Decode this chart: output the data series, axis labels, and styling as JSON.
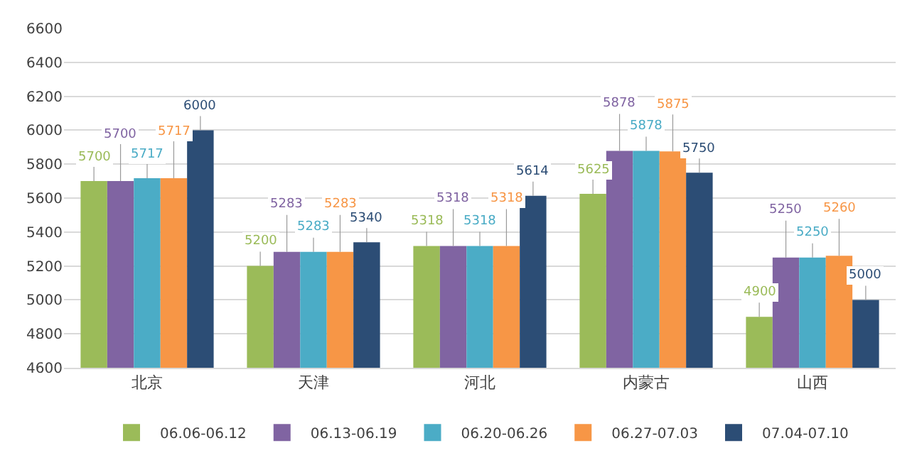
{
  "chart_data": {
    "type": "bar",
    "categories": [
      "北京",
      "天津",
      "河北",
      "内蒙古",
      "山西"
    ],
    "series": [
      {
        "name": "06.06-06.12",
        "color": "#9bbb59",
        "values": [
          5700,
          5200,
          5318,
          5625,
          4900
        ]
      },
      {
        "name": "06.13-06.19",
        "color": "#8064a2",
        "values": [
          5700,
          5283,
          5318,
          5878,
          5250
        ]
      },
      {
        "name": "06.20-06.26",
        "color": "#4bacc6",
        "values": [
          5717,
          5283,
          5318,
          5878,
          5250
        ]
      },
      {
        "name": "06.27-07.03",
        "color": "#f79646",
        "values": [
          5717,
          5283,
          5318,
          5875,
          5260
        ]
      },
      {
        "name": "07.04-07.10",
        "color": "#2c4d75",
        "values": [
          6000,
          5340,
          5614,
          5750,
          5000
        ]
      }
    ],
    "ylim": [
      4600,
      6600
    ],
    "yticks": [
      4600,
      4800,
      5000,
      5200,
      5400,
      5600,
      5800,
      6000,
      6200,
      6400,
      6600
    ],
    "grid": "y",
    "legend": "bottom",
    "data_labels": true
  }
}
